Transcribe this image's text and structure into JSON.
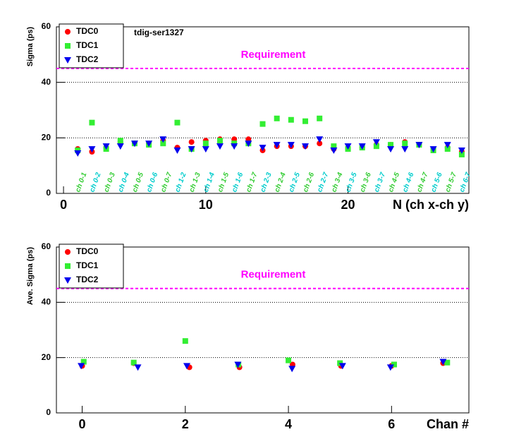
{
  "chart_data": [
    {
      "type": "scatter",
      "annotation": "tdig-ser1327",
      "y_label": "Sigma (ps)",
      "x_label": "N (ch x-ch y)",
      "xlim": [
        -0.5,
        28.5
      ],
      "xticks": [
        0,
        10,
        20
      ],
      "ylim": [
        0,
        60
      ],
      "yticks": [
        0,
        20,
        40,
        60
      ],
      "grid": true,
      "legend": "top-left",
      "reference_line": {
        "value": 45,
        "label": "Requirement",
        "color": "#ff00ff"
      },
      "pair_labels": [
        "ch 0-1",
        "ch 0-2",
        "ch 0-3",
        "ch 0-4",
        "ch 0-5",
        "ch 0-6",
        "ch 0-7",
        "ch 1-2",
        "ch 1-3",
        "ch 1-4",
        "ch 1-5",
        "ch 1-6",
        "ch 1-7",
        "ch 2-3",
        "ch 2-4",
        "ch 2-5",
        "ch 2-6",
        "ch 2-7",
        "ch 3-4",
        "ch 3-5",
        "ch 3-6",
        "ch 3-7",
        "ch 4-5",
        "ch 4-6",
        "ch 4-7",
        "ch 5-6",
        "ch 5-7",
        "ch 6-7"
      ],
      "pair_label_colors": [
        "#33cc33",
        "#00cccc"
      ],
      "x": [
        1,
        2,
        3,
        4,
        5,
        6,
        7,
        8,
        9,
        10,
        11,
        12,
        13,
        14,
        15,
        16,
        17,
        18,
        19,
        20,
        21,
        22,
        23,
        24,
        25,
        26,
        27,
        28
      ],
      "series": [
        {
          "name": "TDC0",
          "color": "#ff0000",
          "marker": "circle",
          "values": [
            16,
            15,
            16.5,
            18.5,
            18,
            18,
            19,
            16.5,
            18.5,
            19,
            19.5,
            19.5,
            19.5,
            15.5,
            17,
            17,
            17,
            18,
            16,
            16,
            16.5,
            17.5,
            17.5,
            18.5,
            17.5,
            15.5,
            16.5,
            15
          ]
        },
        {
          "name": "TDC1",
          "color": "#33ee33",
          "marker": "square",
          "values": [
            15.5,
            25.5,
            16,
            19,
            18,
            17.5,
            18,
            25.5,
            16,
            18,
            19,
            18,
            18,
            25,
            27,
            26.5,
            26,
            27,
            17,
            16,
            16.5,
            17,
            17.5,
            18,
            17.5,
            15.5,
            16,
            14
          ]
        },
        {
          "name": "TDC2",
          "color": "#0000ee",
          "marker": "triangle-down",
          "values": [
            14.5,
            16,
            17,
            17,
            18,
            18,
            19.5,
            15.5,
            16,
            16,
            17,
            17,
            18,
            16.5,
            17.5,
            17.5,
            17,
            19.5,
            15.5,
            17,
            17,
            18.5,
            16,
            16,
            17.5,
            16,
            17.5,
            15.5
          ]
        }
      ]
    },
    {
      "type": "scatter",
      "y_label": "Ave. Sigma (ps)",
      "x_label": "Chan #",
      "xlim": [
        -0.5,
        7.5
      ],
      "xticks": [
        0,
        2,
        4,
        6
      ],
      "ylim": [
        0,
        60
      ],
      "yticks": [
        0,
        20,
        40,
        60
      ],
      "grid": true,
      "legend": "top-left",
      "reference_line": {
        "value": 45,
        "label": "Requirement",
        "color": "#ff00ff"
      },
      "series": [
        {
          "name": "TDC0",
          "color": "#ff0000",
          "marker": "circle",
          "x": [
            0,
            1,
            2.08,
            3.05,
            4.08,
            5.02,
            6,
            7
          ],
          "values": [
            17,
            18,
            16.5,
            16.5,
            17.5,
            17,
            17,
            18
          ]
        },
        {
          "name": "TDC1",
          "color": "#33ee33",
          "marker": "square",
          "x": [
            0.03,
            1,
            2,
            3.03,
            4,
            5,
            6.05,
            7.08
          ],
          "values": [
            18.5,
            18.2,
            26,
            17.5,
            19,
            18,
            17.5,
            18.2
          ]
        },
        {
          "name": "TDC2",
          "color": "#0000ee",
          "marker": "triangle-down",
          "x": [
            -0.02,
            1.08,
            2.03,
            3.02,
            4.07,
            5.05,
            5.98,
            7
          ],
          "values": [
            17,
            16.5,
            17,
            17.5,
            16,
            17,
            16.5,
            18.5
          ]
        }
      ]
    }
  ]
}
